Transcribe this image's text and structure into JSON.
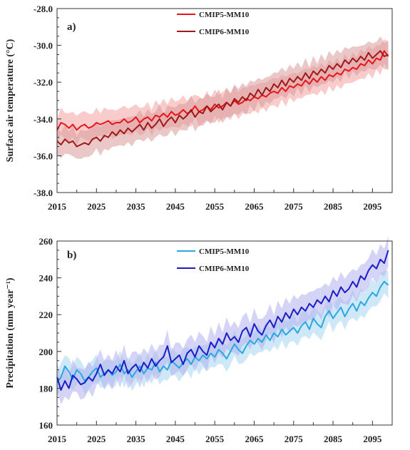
{
  "chart_data": [
    {
      "type": "line",
      "panel_label": "a)",
      "xlabel": "",
      "ylabel": "Surface air temperature (°C)",
      "xlim": [
        2015,
        2100
      ],
      "ylim": [
        -38.0,
        -28.0
      ],
      "xticks": [
        2015,
        2025,
        2035,
        2045,
        2055,
        2065,
        2075,
        2085,
        2095
      ],
      "yticks": [
        -38.0,
        -36.0,
        -34.0,
        -32.0,
        -30.0,
        -28.0
      ],
      "ytick_labels": [
        "-38.0",
        "-36.0",
        "-34.0",
        "-32.0",
        "-30.0",
        "-28.0"
      ],
      "legend": "top-left",
      "grid": false,
      "series": [
        {
          "name": "CMIP5-MM10",
          "color": "#e8141c",
          "band_color": "#f4a3a3",
          "x_start": 2015,
          "values": [
            -34.6,
            -34.2,
            -34.3,
            -34.5,
            -34.3,
            -34.6,
            -34.4,
            -34.3,
            -34.5,
            -34.4,
            -34.2,
            -34.3,
            -34.2,
            -34.1,
            -34.3,
            -34.2,
            -34.2,
            -34.0,
            -34.2,
            -34.1,
            -33.9,
            -34.2,
            -34.0,
            -33.9,
            -34.1,
            -33.8,
            -33.9,
            -33.7,
            -33.9,
            -33.6,
            -33.8,
            -33.7,
            -33.5,
            -33.7,
            -33.6,
            -33.3,
            -33.6,
            -33.5,
            -33.3,
            -33.5,
            -33.2,
            -33.4,
            -33.3,
            -33.1,
            -33.3,
            -33.0,
            -33.2,
            -33.1,
            -32.9,
            -33.0,
            -32.8,
            -32.9,
            -32.7,
            -32.8,
            -32.6,
            -32.5,
            -32.6,
            -32.3,
            -32.5,
            -32.2,
            -32.3,
            -32.1,
            -32.2,
            -31.9,
            -32.1,
            -31.8,
            -32.0,
            -31.7,
            -31.9,
            -31.6,
            -31.7,
            -31.5,
            -31.6,
            -31.3,
            -31.4,
            -31.2,
            -31.3,
            -31.0,
            -31.1,
            -30.8,
            -31.0,
            -30.7,
            -30.8,
            -30.3,
            -30.6
          ],
          "spread": 0.75
        },
        {
          "name": "CMIP6-MM10",
          "color": "#9e1a1a",
          "band_color": "#d99a9a",
          "x_start": 2015,
          "values": [
            -35.2,
            -35.4,
            -35.1,
            -35.3,
            -35.2,
            -35.5,
            -35.4,
            -35.3,
            -35.4,
            -35.1,
            -35.0,
            -35.2,
            -34.9,
            -35.0,
            -34.7,
            -34.9,
            -34.6,
            -34.8,
            -34.5,
            -34.7,
            -34.5,
            -34.3,
            -34.6,
            -34.2,
            -34.5,
            -34.3,
            -34.0,
            -34.4,
            -34.1,
            -33.9,
            -34.2,
            -33.8,
            -34.0,
            -33.8,
            -33.5,
            -33.9,
            -33.6,
            -33.7,
            -33.3,
            -33.6,
            -33.4,
            -33.2,
            -33.5,
            -33.1,
            -33.3,
            -32.9,
            -33.1,
            -32.8,
            -33.0,
            -32.6,
            -32.8,
            -32.4,
            -32.7,
            -32.3,
            -32.5,
            -32.1,
            -32.3,
            -31.9,
            -32.2,
            -31.8,
            -32.0,
            -31.7,
            -31.9,
            -31.5,
            -31.8,
            -31.4,
            -31.6,
            -31.3,
            -31.5,
            -31.1,
            -31.3,
            -31.0,
            -31.2,
            -30.8,
            -31.0,
            -30.7,
            -30.9,
            -30.6,
            -30.8,
            -30.4,
            -30.7,
            -30.5,
            -30.3,
            -30.6,
            -30.5
          ],
          "spread": 0.75
        }
      ]
    },
    {
      "type": "line",
      "panel_label": "b)",
      "xlabel": "",
      "ylabel": "Precipitation (mm year⁻¹)",
      "xlim": [
        2015,
        2100
      ],
      "ylim": [
        160,
        260
      ],
      "xticks": [
        2015,
        2025,
        2035,
        2045,
        2055,
        2065,
        2075,
        2085,
        2095
      ],
      "yticks": [
        160,
        180,
        200,
        220,
        240,
        260
      ],
      "ytick_labels": [
        "160",
        "180",
        "200",
        "220",
        "240",
        "260"
      ],
      "legend": "top-left",
      "grid": false,
      "series": [
        {
          "name": "CMIP5-MM10",
          "color": "#29a8e0",
          "band_color": "#a6d6f0",
          "x_start": 2015,
          "values": [
            183,
            186,
            192,
            189,
            185,
            190,
            188,
            184,
            186,
            189,
            191,
            186,
            188,
            190,
            187,
            189,
            193,
            188,
            190,
            186,
            189,
            192,
            188,
            191,
            190,
            194,
            189,
            192,
            190,
            195,
            193,
            191,
            194,
            196,
            193,
            197,
            195,
            198,
            196,
            199,
            197,
            201,
            199,
            196,
            200,
            204,
            201,
            199,
            203,
            206,
            204,
            207,
            205,
            209,
            206,
            210,
            208,
            212,
            209,
            211,
            213,
            210,
            214,
            216,
            212,
            218,
            215,
            213,
            219,
            222,
            218,
            221,
            224,
            219,
            223,
            226,
            222,
            227,
            225,
            229,
            232,
            230,
            235,
            238,
            236
          ],
          "spread": 7
        },
        {
          "name": "CMIP6-MM10",
          "color": "#1a1ec8",
          "band_color": "#b3b0ee",
          "x_start": 2015,
          "values": [
            186,
            179,
            184,
            180,
            187,
            185,
            182,
            183,
            186,
            184,
            188,
            193,
            187,
            190,
            188,
            192,
            189,
            195,
            188,
            191,
            193,
            189,
            194,
            191,
            196,
            192,
            195,
            197,
            203,
            194,
            196,
            198,
            193,
            199,
            201,
            197,
            203,
            200,
            198,
            205,
            202,
            207,
            204,
            210,
            206,
            208,
            205,
            211,
            213,
            208,
            215,
            211,
            209,
            214,
            217,
            213,
            219,
            216,
            221,
            218,
            223,
            220,
            224,
            222,
            226,
            224,
            228,
            226,
            230,
            227,
            233,
            230,
            235,
            232,
            234,
            238,
            235,
            241,
            239,
            244,
            247,
            245,
            250,
            248,
            255
          ],
          "spread": 8
        }
      ]
    }
  ]
}
